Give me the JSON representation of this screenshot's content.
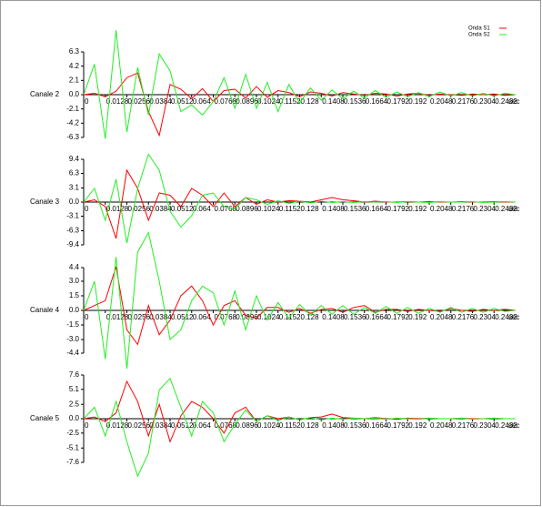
{
  "chart_data": [
    {
      "type": "line",
      "ylabel": "Canale 2",
      "xlabel": "sec",
      "legend": "upper right",
      "x": [
        0,
        0.0064,
        0.0128,
        0.0192,
        0.0256,
        0.032,
        0.0384,
        0.0448,
        0.0512,
        0.0576,
        0.064,
        0.0704,
        0.0768,
        0.0832,
        0.0896,
        0.096,
        0.1024,
        0.1088,
        0.1152,
        0.1216,
        0.128,
        0.1344,
        0.1408,
        0.1472,
        0.1536,
        0.16,
        0.1664,
        0.1728,
        0.1792,
        0.1856,
        0.192,
        0.1984,
        0.2048,
        0.2112,
        0.2176,
        0.224,
        0.2304,
        0.2368,
        0.2432,
        0.2496,
        0.256
      ],
      "xlim": [
        0,
        0.256
      ],
      "xticks": [
        0,
        0.0128,
        0.0256,
        0.0384,
        0.0512,
        0.064,
        0.0768,
        0.0896,
        0.1024,
        0.1152,
        0.128,
        0.1408,
        0.1536,
        0.1664,
        0.1792,
        0.192,
        0.2048,
        0.2176,
        0.2304,
        0.2432
      ],
      "ylim": [
        -6.3,
        6.3
      ],
      "yticks": [
        6.3,
        4.2,
        2.1,
        {
          "value": 0,
          "label": "0.0"
        },
        -2.1,
        -4.2,
        -6.3
      ],
      "series": [
        {
          "name": "Onda S1",
          "color": "#ff0000",
          "values": [
            0,
            0.2,
            -0.3,
            0.5,
            2.5,
            3.2,
            -2.5,
            -6,
            1.5,
            0.8,
            -0.6,
            0.9,
            -1,
            0.6,
            0.8,
            -0.5,
            1.2,
            -0.4,
            0.6,
            0.3,
            -0.3,
            0.4,
            0.2,
            -0.2,
            0.3,
            0.1,
            -0.1,
            0.2,
            0.1,
            -0.2,
            0.1,
            0.2,
            -0.1,
            0.1,
            0,
            -0.1,
            0.1,
            0,
            0.1,
            -0.1,
            0
          ]
        },
        {
          "name": "Onda S2",
          "color": "#22ee22",
          "values": [
            0,
            4.5,
            -6.5,
            9.5,
            -5.5,
            4,
            -3,
            6,
            3.5,
            -2.5,
            -1.5,
            -3,
            -1,
            2.5,
            -2,
            3,
            -2,
            1.8,
            -2.5,
            1.5,
            -1.2,
            1,
            -0.8,
            0.7,
            -0.6,
            0.5,
            -0.5,
            0.6,
            -0.4,
            0.4,
            -0.3,
            0.3,
            -0.3,
            0.4,
            -0.2,
            0.3,
            -0.2,
            0.2,
            -0.2,
            0.2,
            0
          ]
        }
      ]
    },
    {
      "type": "line",
      "ylabel": "Canale 3",
      "xlabel": "sec",
      "x": [
        0,
        0.0064,
        0.0128,
        0.0192,
        0.0256,
        0.032,
        0.0384,
        0.0448,
        0.0512,
        0.0576,
        0.064,
        0.0704,
        0.0768,
        0.0832,
        0.0896,
        0.096,
        0.1024,
        0.1088,
        0.1152,
        0.1216,
        0.128,
        0.1344,
        0.1408,
        0.1472,
        0.1536,
        0.16,
        0.1664,
        0.1728,
        0.1792,
        0.1856,
        0.192,
        0.1984,
        0.2048,
        0.2112,
        0.2176,
        0.224,
        0.2304,
        0.2368,
        0.2432,
        0.2496,
        0.256
      ],
      "xlim": [
        0,
        0.256
      ],
      "xticks": [
        0,
        0.0128,
        0.0256,
        0.0384,
        0.0512,
        0.064,
        0.0768,
        0.0896,
        0.1024,
        0.1152,
        0.128,
        0.1408,
        0.1536,
        0.1664,
        0.1792,
        0.192,
        0.2048,
        0.2176,
        0.2304,
        0.2432
      ],
      "ylim": [
        -9.4,
        9.4
      ],
      "yticks": [
        9.4,
        6.3,
        3.1,
        {
          "value": 0,
          "label": "0.0"
        },
        -3.1,
        -6.3,
        -9.4
      ],
      "series": [
        {
          "color": "#ff0000",
          "values": [
            0,
            0.5,
            -1,
            -8,
            7,
            3,
            -4,
            2,
            1.5,
            -1,
            3,
            1.5,
            -1,
            2,
            -1,
            1,
            -0.5,
            0.5,
            0,
            0.3,
            0.2,
            0,
            0.5,
            1,
            0.5,
            0.3,
            0,
            0.2,
            0,
            0,
            0.1,
            0,
            0.1,
            0,
            0,
            0.1,
            0,
            0,
            0.1,
            0,
            0
          ]
        },
        {
          "color": "#22ee22",
          "values": [
            0,
            3,
            -4,
            5,
            -9,
            3,
            10.5,
            7,
            -2,
            -5.5,
            -3,
            1.5,
            2,
            -1,
            -1.5,
            1,
            0.5,
            -0.5,
            0.3,
            -0.3,
            0.2,
            -0.2,
            0.2,
            -0.1,
            0.1,
            -0.1,
            0.1,
            0,
            0.1,
            -0.1,
            0.1,
            0,
            -0.1,
            0.1,
            0,
            0,
            0.1,
            -0.1,
            0,
            0.1,
            0
          ]
        }
      ]
    },
    {
      "type": "line",
      "ylabel": "Canale 4",
      "xlabel": "sec",
      "x": [
        0,
        0.0064,
        0.0128,
        0.0192,
        0.0256,
        0.032,
        0.0384,
        0.0448,
        0.0512,
        0.0576,
        0.064,
        0.0704,
        0.0768,
        0.0832,
        0.0896,
        0.096,
        0.1024,
        0.1088,
        0.1152,
        0.1216,
        0.128,
        0.1344,
        0.1408,
        0.1472,
        0.1536,
        0.16,
        0.1664,
        0.1728,
        0.1792,
        0.1856,
        0.192,
        0.1984,
        0.2048,
        0.2112,
        0.2176,
        0.224,
        0.2304,
        0.2368,
        0.2432,
        0.2496,
        0.256
      ],
      "xlim": [
        0,
        0.256
      ],
      "xticks": [
        0,
        0.0128,
        0.0256,
        0.0384,
        0.0512,
        0.064,
        0.0768,
        0.0896,
        0.1024,
        0.1152,
        0.128,
        0.1408,
        0.1536,
        0.1664,
        0.1792,
        0.192,
        0.2048,
        0.2176,
        0.2304,
        0.2432
      ],
      "ylim": [
        -4.4,
        4.4
      ],
      "yticks": [
        4.4,
        {
          "value": 3,
          "label": "3.0"
        },
        1.5,
        {
          "value": 0,
          "label": "0.0"
        },
        -1.5,
        {
          "value": -3,
          "label": "-3.0"
        },
        -4.4
      ],
      "series": [
        {
          "color": "#ff0000",
          "values": [
            0,
            0.5,
            1,
            4.5,
            -2,
            -3.5,
            0.5,
            -2.5,
            -1,
            1.5,
            2.5,
            1,
            -1.5,
            0.5,
            1,
            -0.5,
            -0.8,
            0.3,
            0.3,
            -0.2,
            0.2,
            -0.3,
            0.1,
            0.2,
            -0.2,
            0.3,
            0.5,
            -0.2,
            0.1,
            0.1,
            -0.1,
            0.1,
            0,
            -0.1,
            0.2,
            0,
            -0.1,
            0.1,
            0,
            0.1,
            0
          ]
        },
        {
          "color": "#22ee22",
          "values": [
            0,
            3,
            -5,
            5.5,
            -6,
            6,
            8,
            3,
            -3,
            -2,
            1,
            2.5,
            1.8,
            -1.5,
            2,
            -2,
            1.5,
            -1,
            0.8,
            -0.8,
            0.6,
            -0.5,
            0.5,
            -0.4,
            0.5,
            -0.4,
            0.3,
            -0.3,
            0.4,
            -0.3,
            0.3,
            -0.3,
            0.2,
            -0.2,
            0.3,
            -0.2,
            0.2,
            -0.2,
            0.2,
            -0.1,
            0
          ]
        }
      ]
    },
    {
      "type": "line",
      "ylabel": "Canale 5",
      "xlabel": "sec",
      "x": [
        0,
        0.0064,
        0.0128,
        0.0192,
        0.0256,
        0.032,
        0.0384,
        0.0448,
        0.0512,
        0.0576,
        0.064,
        0.0704,
        0.0768,
        0.0832,
        0.0896,
        0.096,
        0.1024,
        0.1088,
        0.1152,
        0.1216,
        0.128,
        0.1344,
        0.1408,
        0.1472,
        0.1536,
        0.16,
        0.1664,
        0.1728,
        0.1792,
        0.1856,
        0.192,
        0.1984,
        0.2048,
        0.2112,
        0.2176,
        0.224,
        0.2304,
        0.2368,
        0.2432,
        0.2496,
        0.256
      ],
      "xlim": [
        0,
        0.256
      ],
      "xticks": [
        0,
        0.0128,
        0.0256,
        0.0384,
        0.0512,
        0.064,
        0.0768,
        0.0896,
        0.1024,
        0.1152,
        0.128,
        0.1408,
        0.1536,
        0.1664,
        0.1792,
        0.192,
        0.2048,
        0.2176,
        0.2304,
        0.2432
      ],
      "ylim": [
        -7.6,
        7.6
      ],
      "yticks": [
        7.6,
        5.1,
        2.5,
        {
          "value": 0,
          "label": "0.0"
        },
        -2.5,
        -5.1,
        -7.6
      ],
      "series": [
        {
          "color": "#ff0000",
          "values": [
            0,
            0.3,
            -0.5,
            1,
            6.5,
            3,
            -3,
            2.5,
            -4,
            0.5,
            3,
            2,
            0,
            -2.5,
            1,
            2,
            -0.5,
            0.5,
            0,
            0.3,
            -0.2,
            0.2,
            0.3,
            0.8,
            0.2,
            0.1,
            0,
            0.2,
            0,
            -0.1,
            0.1,
            0,
            0.1,
            0,
            0,
            0.1,
            0,
            0,
            0.1,
            0,
            0
          ]
        },
        {
          "color": "#22ee22",
          "values": [
            0,
            2,
            -3,
            3,
            -4,
            -10,
            -6,
            5,
            7,
            2,
            -3,
            3,
            1,
            -4,
            -1,
            1.5,
            -0.5,
            0.5,
            -0.3,
            0.3,
            -0.2,
            0.2,
            -0.2,
            0.1,
            -0.1,
            0.1,
            0,
            0.1,
            -0.1,
            0.1,
            0,
            -0.1,
            0.1,
            0,
            0,
            0.1,
            -0.1,
            0,
            0.1,
            0,
            0
          ]
        }
      ]
    }
  ]
}
